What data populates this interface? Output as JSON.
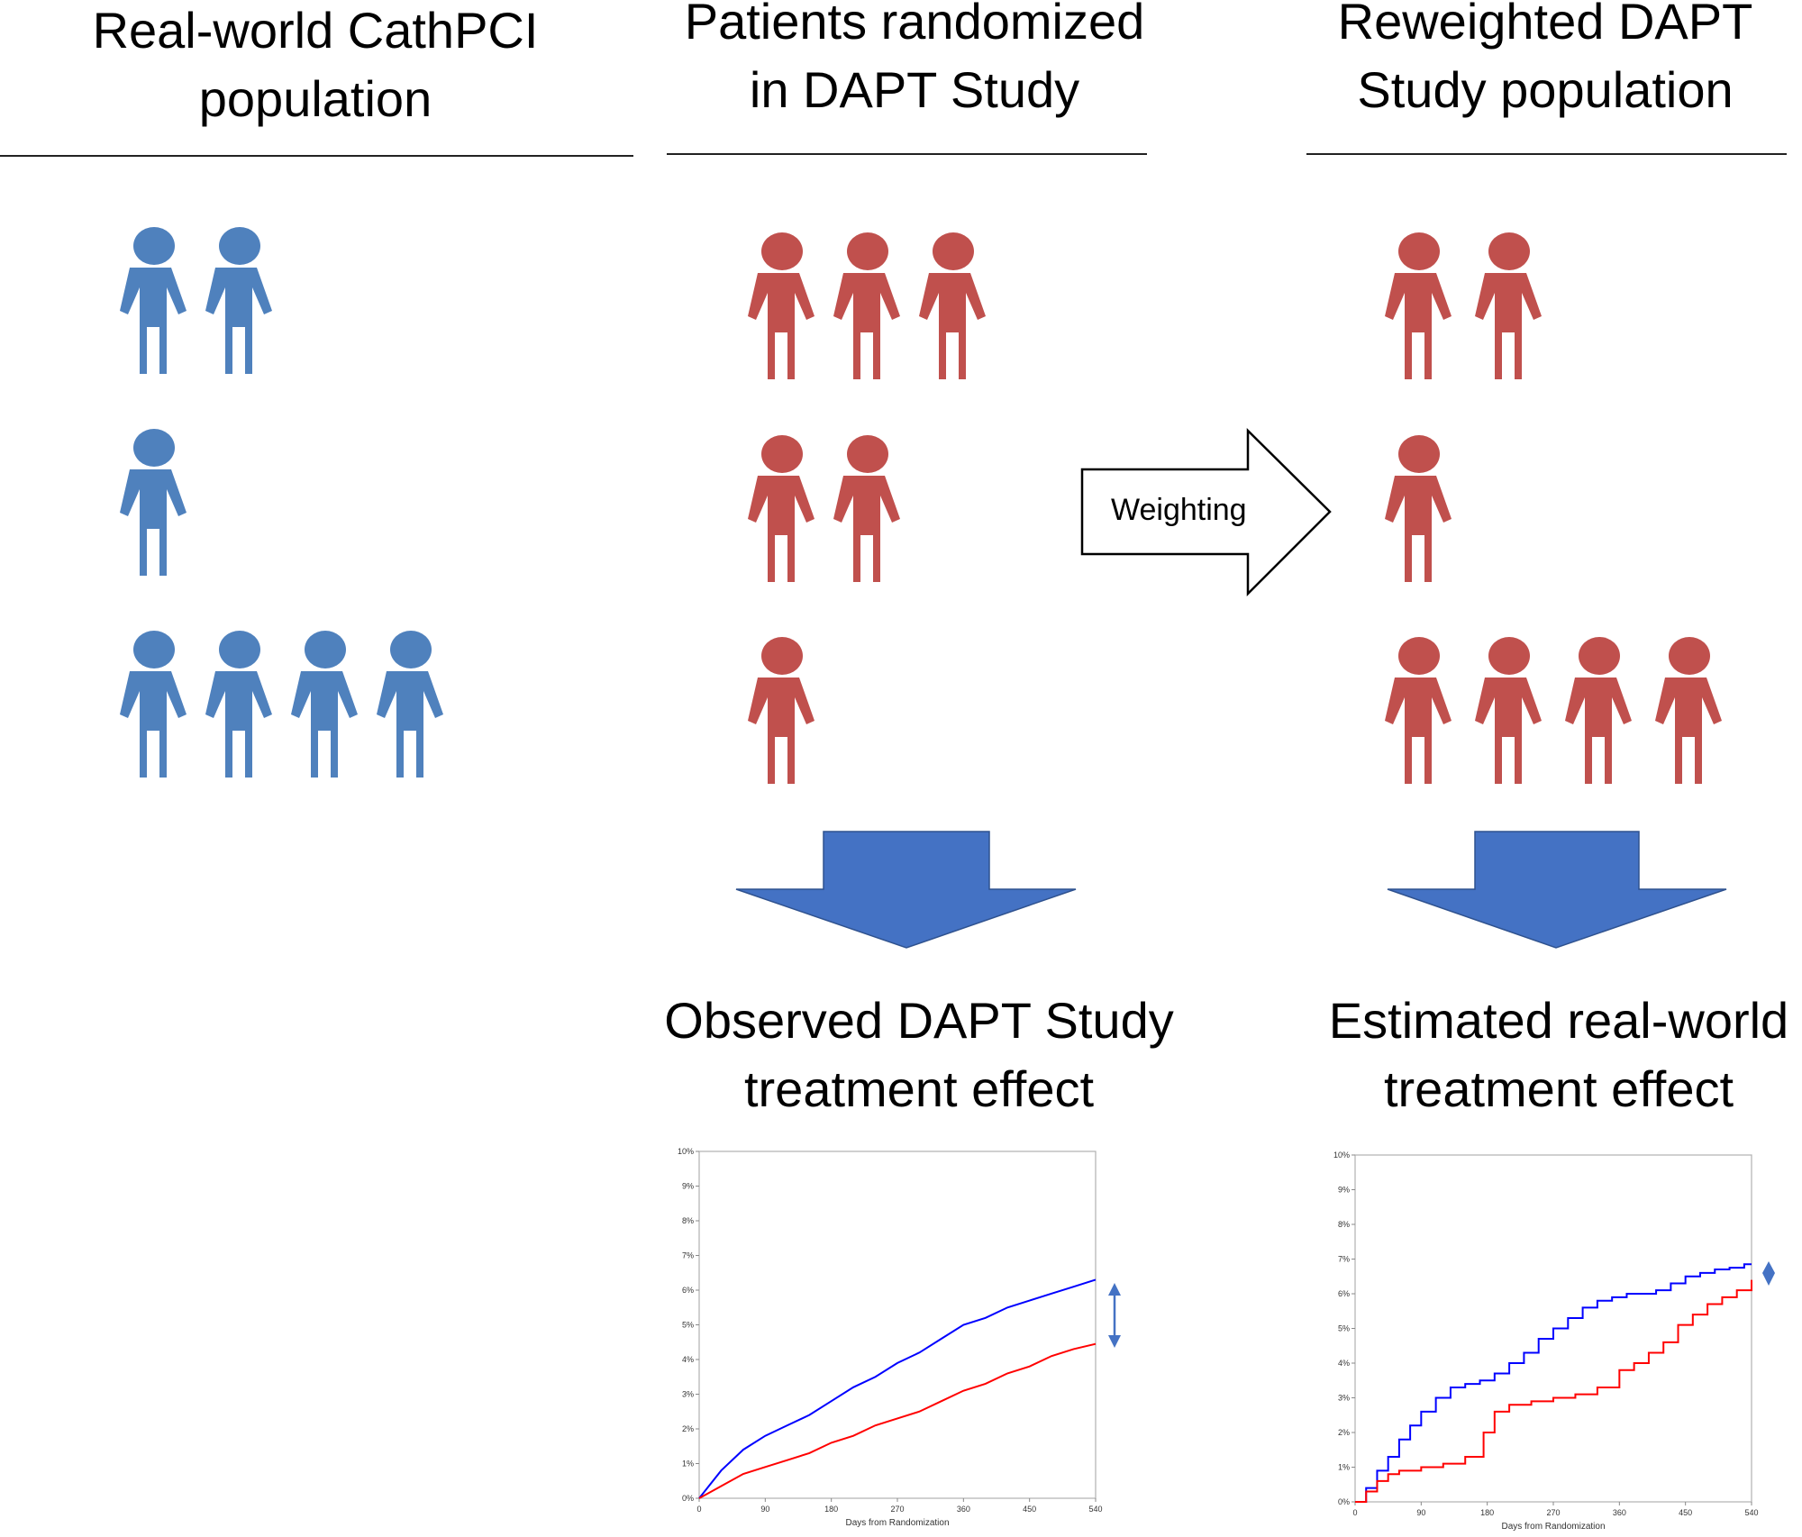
{
  "columns": [
    {
      "title_line1": "Real-world CathPCI",
      "title_line2": "population"
    },
    {
      "title_line1": "Patients randomized",
      "title_line2": "in DAPT Study"
    },
    {
      "title_line1": "Reweighted DAPT",
      "title_line2": "Study population"
    }
  ],
  "groups": {
    "cathpci": [
      2,
      1,
      4
    ],
    "dapt": [
      3,
      2,
      1
    ],
    "reweighted": [
      2,
      1,
      4
    ]
  },
  "colors": {
    "cathpci_person": "#4f81bd",
    "dapt_person": "#c0504d",
    "block_arrow": "#4472c4",
    "line_blue": "#0000ff",
    "line_red": "#ff0000"
  },
  "weighting_label": "Weighting",
  "outcomes": [
    {
      "line1": "Observed DAPT Study",
      "line2": "treatment effect"
    },
    {
      "line1": "Estimated real-world",
      "line2": "treatment effect"
    }
  ],
  "chart_data": [
    {
      "type": "line",
      "xlabel": "Days from Randomization",
      "ylabel": "",
      "x_ticks": [
        "0",
        "90",
        "180",
        "270",
        "360",
        "450",
        "540"
      ],
      "y_ticks": [
        "0%",
        "1%",
        "2%",
        "3%",
        "4%",
        "5%",
        "6%",
        "7%",
        "8%",
        "9%",
        "10%"
      ],
      "xlim": [
        0,
        540
      ],
      "ylim": [
        0,
        10
      ],
      "grid": false,
      "series": [
        {
          "color": "blue",
          "step": false,
          "x": [
            0,
            30,
            60,
            90,
            120,
            150,
            180,
            210,
            240,
            270,
            300,
            330,
            360,
            390,
            420,
            450,
            480,
            510,
            540
          ],
          "y": [
            0,
            0.8,
            1.4,
            1.8,
            2.1,
            2.4,
            2.8,
            3.2,
            3.5,
            3.9,
            4.2,
            4.6,
            5.0,
            5.2,
            5.5,
            5.7,
            5.9,
            6.1,
            6.3
          ]
        },
        {
          "color": "red",
          "step": false,
          "x": [
            0,
            30,
            60,
            90,
            120,
            150,
            180,
            210,
            240,
            270,
            300,
            330,
            360,
            390,
            420,
            450,
            480,
            510,
            540
          ],
          "y": [
            0,
            0.35,
            0.7,
            0.9,
            1.1,
            1.3,
            1.6,
            1.8,
            2.1,
            2.3,
            2.5,
            2.8,
            3.1,
            3.3,
            3.6,
            3.8,
            4.1,
            4.3,
            4.45
          ]
        }
      ]
    },
    {
      "type": "line",
      "xlabel": "Days from Randomization",
      "ylabel": "",
      "x_ticks": [
        "0",
        "90",
        "180",
        "270",
        "360",
        "450",
        "540"
      ],
      "y_ticks": [
        "0%",
        "1%",
        "2%",
        "3%",
        "4%",
        "5%",
        "6%",
        "7%",
        "8%",
        "9%",
        "10%"
      ],
      "xlim": [
        0,
        540
      ],
      "ylim": [
        0,
        10
      ],
      "grid": false,
      "series": [
        {
          "color": "blue",
          "step": true,
          "x": [
            0,
            15,
            30,
            45,
            60,
            75,
            90,
            110,
            130,
            150,
            170,
            190,
            210,
            230,
            250,
            270,
            290,
            310,
            330,
            350,
            370,
            390,
            410,
            430,
            450,
            470,
            490,
            510,
            530,
            540
          ],
          "y": [
            0,
            0.4,
            0.9,
            1.3,
            1.8,
            2.2,
            2.6,
            3.0,
            3.3,
            3.4,
            3.5,
            3.7,
            4.0,
            4.3,
            4.7,
            5.0,
            5.3,
            5.6,
            5.8,
            5.9,
            6.0,
            6.0,
            6.1,
            6.3,
            6.5,
            6.6,
            6.7,
            6.75,
            6.85,
            6.85
          ]
        },
        {
          "color": "red",
          "step": true,
          "x": [
            0,
            15,
            30,
            45,
            60,
            90,
            120,
            150,
            175,
            190,
            210,
            240,
            270,
            300,
            330,
            360,
            380,
            400,
            420,
            440,
            460,
            480,
            500,
            520,
            540
          ],
          "y": [
            0,
            0.3,
            0.6,
            0.8,
            0.9,
            1.0,
            1.1,
            1.3,
            2.0,
            2.6,
            2.8,
            2.9,
            3.0,
            3.1,
            3.3,
            3.8,
            4.0,
            4.3,
            4.6,
            5.1,
            5.4,
            5.7,
            5.9,
            6.1,
            6.4
          ]
        }
      ]
    }
  ]
}
